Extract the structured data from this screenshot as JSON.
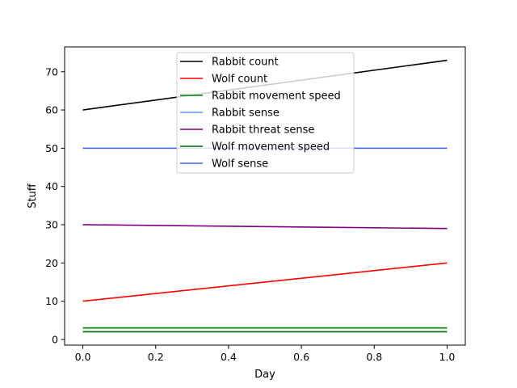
{
  "chart_data": {
    "type": "line",
    "title": "",
    "xlabel": "Day",
    "ylabel": "Stuff",
    "xlim": [
      -0.05,
      1.05
    ],
    "ylim": [
      -1.5,
      76.5
    ],
    "xticks": [
      0.0,
      0.2,
      0.4,
      0.6,
      0.8,
      1.0
    ],
    "xtick_labels": [
      "0.0",
      "0.2",
      "0.4",
      "0.6",
      "0.8",
      "1.0"
    ],
    "yticks": [
      0,
      10,
      20,
      30,
      40,
      50,
      60,
      70
    ],
    "ytick_labels": [
      "0",
      "10",
      "20",
      "30",
      "40",
      "50",
      "60",
      "70"
    ],
    "grid": false,
    "legend_position": "upper center",
    "x": [
      0,
      1
    ],
    "series": [
      {
        "name": "Rabbit count",
        "values": [
          60,
          73
        ],
        "color": "#000000"
      },
      {
        "name": "Wolf count",
        "values": [
          10,
          20
        ],
        "color": "#ff0000"
      },
      {
        "name": "Rabbit movement speed",
        "values": [
          3,
          3
        ],
        "color": "#008000"
      },
      {
        "name": "Rabbit sense",
        "values": [
          50,
          50
        ],
        "color": "#6495ed"
      },
      {
        "name": "Rabbit threat sense",
        "values": [
          30,
          29
        ],
        "color": "#800080"
      },
      {
        "name": "Wolf movement speed",
        "values": [
          2,
          2
        ],
        "color": "#006400"
      },
      {
        "name": "Wolf sense",
        "values": [
          50,
          50
        ],
        "color": "#4169e1"
      }
    ]
  }
}
